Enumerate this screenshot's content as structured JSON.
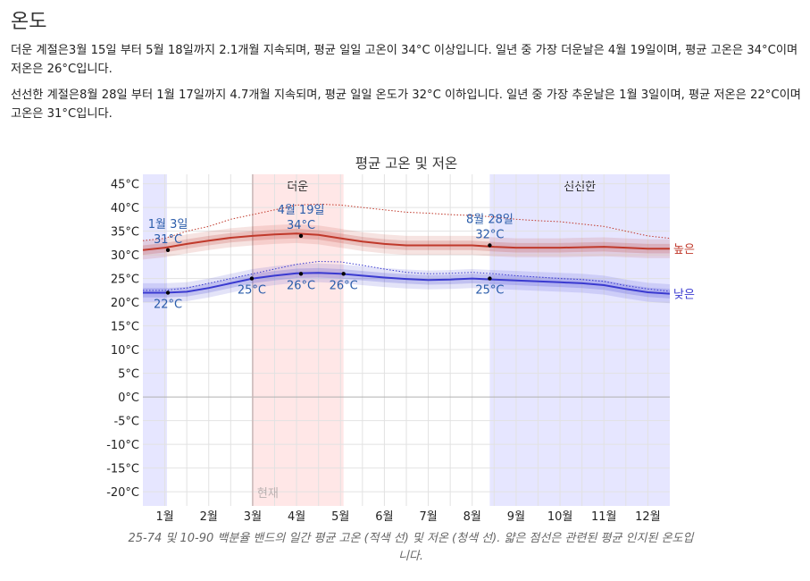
{
  "section_title": "온도",
  "hot_season": {
    "label": "더운 계절은",
    "start": "3월 15일",
    "text1": " 부터 ",
    "end": "5월 18일",
    "text2": "까지 ",
    "duration": "2.1개월",
    "text3": " 지속되며, 평균 일일 고온이 ",
    "threshold": "34°C",
    "text4": " 이상입니다. 일년 중 가장 더운날은 ",
    "peak_day": "4월 19일",
    "text5": "이며, 평균 고온은 ",
    "peak_high": "34°C",
    "text6": "이며 저온은 ",
    "peak_low": "26°C",
    "text7": "입니다."
  },
  "cool_season": {
    "label": "선선한 계절은",
    "start": "8월 28일",
    "text1": " 부터 ",
    "end": "1월 17일",
    "text2": "까지 ",
    "duration": "4.7개월",
    "text3": " 지속되며, 평균 일일 온도가 ",
    "threshold": "32°C",
    "text4": " 이하입니다. 일년 중 가장 추운날은 ",
    "low_day": "1월 3일",
    "text5": "이며, 평균 저온은 ",
    "low_low": "22°C",
    "text6": "이며 고온은 ",
    "low_high": "31°C",
    "text7": "입니다."
  },
  "chart_data": {
    "type": "line",
    "title": "평균 고온 및 저온",
    "x_unit": "month",
    "xlim": [
      0.5,
      12.5
    ],
    "ylim": [
      -23,
      47
    ],
    "y_ticks": [
      -20,
      -15,
      -10,
      -5,
      0,
      5,
      10,
      15,
      20,
      25,
      30,
      35,
      40,
      45
    ],
    "y_tick_labels": [
      "-20°C",
      "-15°C",
      "-10°C",
      "-5°C",
      "0°C",
      "5°C",
      "10°C",
      "15°C",
      "20°C",
      "25°C",
      "30°C",
      "35°C",
      "40°C",
      "45°C"
    ],
    "x_tick_labels": [
      "1월",
      "2월",
      "3월",
      "4월",
      "5월",
      "6월",
      "7월",
      "8월",
      "9월",
      "10월",
      "11월",
      "12월"
    ],
    "x_tick_positions": [
      1,
      2,
      3,
      4,
      5,
      6,
      7,
      8,
      9,
      10,
      11,
      12
    ],
    "seasons": [
      {
        "name": "",
        "start": 0.5,
        "end": 1.05,
        "color": "#e6e6ff"
      },
      {
        "name": "더운",
        "start": 2.98,
        "end": 5.07,
        "color": "#ffe7e7"
      },
      {
        "name": "선선한",
        "start": 8.4,
        "end": 12.5,
        "color": "#e6e6ff"
      }
    ],
    "now_marker": {
      "x": 3.0,
      "label": "현재"
    },
    "x": [
      0.5,
      1.0,
      1.5,
      2.0,
      2.5,
      3.0,
      3.5,
      4.0,
      4.5,
      5.0,
      5.5,
      6.0,
      6.5,
      7.0,
      7.5,
      8.0,
      8.5,
      9.0,
      9.5,
      10.0,
      10.5,
      11.0,
      11.5,
      12.0,
      12.5
    ],
    "series": [
      {
        "name": "높은",
        "color": "#c0392b",
        "values": [
          31.0,
          31.5,
          32.3,
          33.0,
          33.6,
          34.0,
          34.3,
          34.5,
          34.2,
          33.5,
          32.8,
          32.3,
          32.0,
          32.0,
          32.0,
          32.0,
          31.7,
          31.5,
          31.5,
          31.5,
          31.6,
          31.7,
          31.5,
          31.3,
          31.3
        ],
        "band_25_75": [
          [
            30.0,
            32.0
          ],
          [
            30.5,
            32.5
          ],
          [
            31.3,
            33.3
          ],
          [
            32.0,
            34.0
          ],
          [
            32.6,
            34.6
          ],
          [
            33.0,
            35.0
          ],
          [
            33.3,
            35.3
          ],
          [
            33.5,
            35.5
          ],
          [
            33.2,
            35.2
          ],
          [
            32.5,
            34.5
          ],
          [
            31.8,
            33.8
          ],
          [
            31.3,
            33.3
          ],
          [
            31.0,
            33.0
          ],
          [
            31.0,
            33.0
          ],
          [
            31.0,
            33.0
          ],
          [
            31.0,
            33.0
          ],
          [
            30.7,
            32.7
          ],
          [
            30.5,
            32.5
          ],
          [
            30.5,
            32.5
          ],
          [
            30.5,
            32.5
          ],
          [
            30.6,
            32.6
          ],
          [
            30.7,
            32.7
          ],
          [
            30.5,
            32.5
          ],
          [
            30.3,
            32.3
          ],
          [
            30.3,
            32.3
          ]
        ],
        "band_10_90": [
          [
            29.0,
            33.0
          ],
          [
            29.5,
            33.5
          ],
          [
            30.3,
            34.3
          ],
          [
            31.0,
            35.0
          ],
          [
            31.6,
            35.6
          ],
          [
            32.0,
            36.0
          ],
          [
            32.3,
            36.3
          ],
          [
            32.5,
            36.5
          ],
          [
            32.2,
            36.2
          ],
          [
            31.5,
            35.5
          ],
          [
            30.8,
            34.8
          ],
          [
            30.3,
            34.3
          ],
          [
            30.0,
            34.0
          ],
          [
            30.0,
            34.0
          ],
          [
            30.0,
            34.0
          ],
          [
            30.0,
            34.0
          ],
          [
            29.7,
            33.7
          ],
          [
            29.5,
            33.5
          ],
          [
            29.5,
            33.5
          ],
          [
            29.5,
            33.5
          ],
          [
            29.6,
            33.6
          ],
          [
            29.7,
            33.7
          ],
          [
            29.5,
            33.5
          ],
          [
            29.3,
            33.3
          ],
          [
            29.3,
            33.3
          ]
        ],
        "perceived": [
          33.0,
          33.5,
          35.0,
          36.0,
          37.5,
          38.5,
          39.5,
          40.5,
          40.7,
          40.5,
          40.0,
          39.5,
          39.0,
          38.8,
          38.5,
          38.3,
          38.0,
          37.5,
          37.2,
          37.0,
          36.5,
          36.0,
          35.0,
          34.0,
          33.5
        ]
      },
      {
        "name": "낮은",
        "color": "#3a3ad0",
        "values": [
          22.0,
          22.0,
          22.2,
          23.0,
          24.0,
          25.0,
          25.6,
          26.1,
          26.2,
          26.0,
          25.6,
          25.2,
          24.9,
          24.7,
          24.8,
          25.0,
          24.8,
          24.6,
          24.4,
          24.2,
          24.0,
          23.6,
          22.8,
          22.1,
          21.8
        ],
        "band_25_75": [
          [
            21.0,
            23.0
          ],
          [
            21.0,
            23.0
          ],
          [
            21.2,
            23.2
          ],
          [
            22.0,
            24.0
          ],
          [
            23.0,
            25.0
          ],
          [
            24.0,
            26.0
          ],
          [
            24.6,
            26.6
          ],
          [
            25.1,
            27.1
          ],
          [
            25.2,
            27.2
          ],
          [
            25.0,
            27.0
          ],
          [
            24.6,
            26.6
          ],
          [
            24.2,
            26.2
          ],
          [
            23.9,
            25.9
          ],
          [
            23.7,
            25.7
          ],
          [
            23.8,
            25.8
          ],
          [
            24.0,
            26.0
          ],
          [
            23.8,
            25.8
          ],
          [
            23.6,
            25.6
          ],
          [
            23.4,
            25.4
          ],
          [
            23.2,
            25.2
          ],
          [
            23.0,
            25.0
          ],
          [
            22.6,
            24.6
          ],
          [
            21.8,
            23.8
          ],
          [
            21.1,
            23.1
          ],
          [
            20.8,
            22.8
          ]
        ],
        "band_10_90": [
          [
            20.0,
            24.0
          ],
          [
            20.0,
            24.0
          ],
          [
            20.2,
            24.2
          ],
          [
            21.0,
            25.0
          ],
          [
            22.0,
            26.0
          ],
          [
            23.0,
            27.0
          ],
          [
            23.6,
            27.6
          ],
          [
            24.1,
            28.1
          ],
          [
            24.2,
            28.2
          ],
          [
            24.0,
            28.0
          ],
          [
            23.6,
            27.6
          ],
          [
            23.2,
            27.2
          ],
          [
            22.9,
            26.9
          ],
          [
            22.7,
            26.7
          ],
          [
            22.8,
            26.8
          ],
          [
            23.0,
            27.0
          ],
          [
            22.8,
            26.8
          ],
          [
            22.6,
            26.6
          ],
          [
            22.4,
            26.4
          ],
          [
            22.2,
            26.2
          ],
          [
            22.0,
            26.0
          ],
          [
            21.6,
            25.6
          ],
          [
            20.8,
            24.8
          ],
          [
            20.1,
            24.1
          ],
          [
            19.8,
            23.8
          ]
        ],
        "perceived": [
          22.5,
          22.5,
          23.0,
          24.0,
          25.0,
          26.0,
          27.0,
          28.0,
          28.6,
          28.5,
          27.8,
          27.0,
          26.3,
          26.0,
          26.1,
          26.3,
          26.0,
          25.6,
          25.3,
          25.0,
          24.8,
          24.4,
          23.5,
          22.8,
          22.3
        ]
      }
    ],
    "annotations": [
      {
        "date": "1월 3일",
        "x": 1.07,
        "y": 31,
        "value": "31°C",
        "series": "높은"
      },
      {
        "date": "",
        "x": 1.07,
        "y": 22,
        "value": "22°C",
        "series": "낮은"
      },
      {
        "date": "",
        "x": 2.98,
        "y": 25,
        "value": "25°C",
        "series": "낮은"
      },
      {
        "date": "4월 19일",
        "x": 4.1,
        "y": 34,
        "value": "34°C",
        "series": "높은"
      },
      {
        "date": "",
        "x": 4.1,
        "y": 26,
        "value": "26°C",
        "series": "낮은"
      },
      {
        "date": "",
        "x": 5.07,
        "y": 26,
        "value": "26°C",
        "series": "낮은"
      },
      {
        "date": "8월 28일",
        "x": 8.4,
        "y": 32,
        "value": "32°C",
        "series": "높은"
      },
      {
        "date": "",
        "x": 8.4,
        "y": 25,
        "value": "25°C",
        "series": "낮은"
      }
    ],
    "caption": "25-74 및 10-90 백분율 밴드의 일간 평균 고온 (적색 선) 및 저온 (청색 선). 얇은 점선은 관련된 평균 인지된 온도입니다."
  }
}
